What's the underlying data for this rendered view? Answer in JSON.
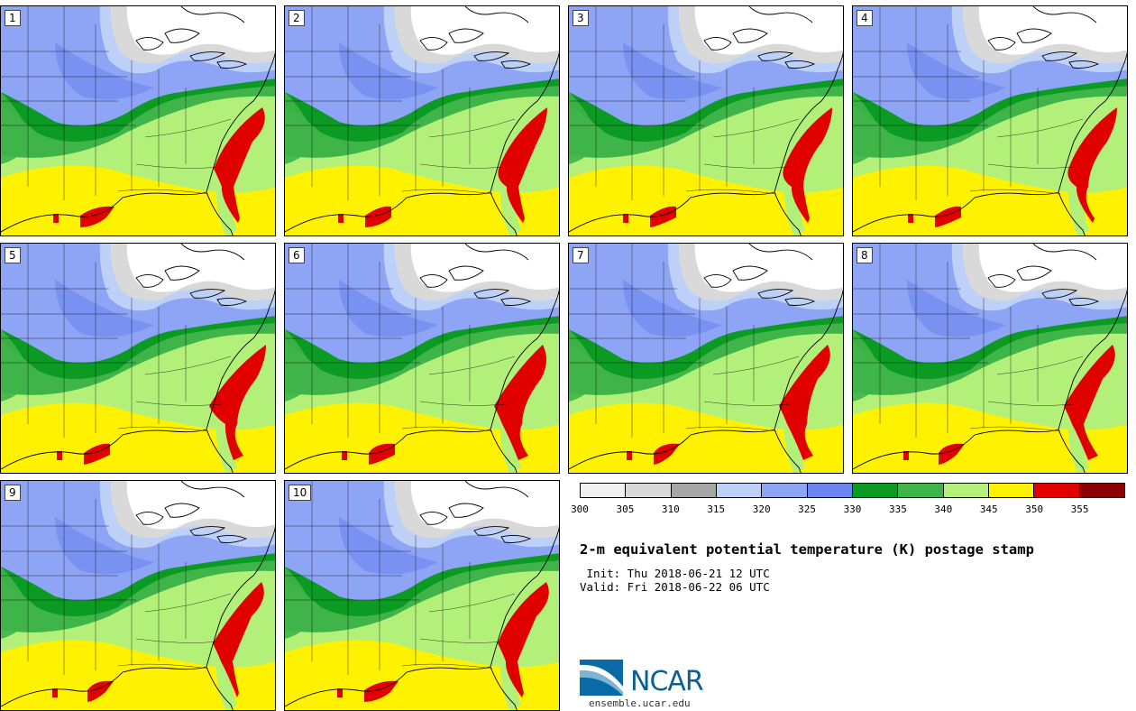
{
  "panels": [
    {
      "label": "1"
    },
    {
      "label": "2"
    },
    {
      "label": "3"
    },
    {
      "label": "4"
    },
    {
      "label": "5"
    },
    {
      "label": "6"
    },
    {
      "label": "7"
    },
    {
      "label": "8"
    },
    {
      "label": "9"
    },
    {
      "label": "10"
    }
  ],
  "legend": {
    "ticks": [
      "300",
      "305",
      "310",
      "315",
      "320",
      "325",
      "330",
      "335",
      "340",
      "345",
      "350",
      "355"
    ],
    "colors": [
      "#f0f0f0",
      "#d9d9d9",
      "#a6a6a6",
      "#bcd0f8",
      "#8ea4f4",
      "#6b86ee",
      "#0b9a22",
      "#3fb449",
      "#b3f07a",
      "#fff200",
      "#e00000",
      "#8b0000"
    ]
  },
  "title": "2-m equivalent potential temperature (K) postage stamp",
  "init": " Init: Thu 2018-06-21 12 UTC",
  "valid": "Valid: Fri 2018-06-22 06 UTC",
  "logo": {
    "name": "NCAR",
    "site": "ensemble.ucar.edu"
  }
}
